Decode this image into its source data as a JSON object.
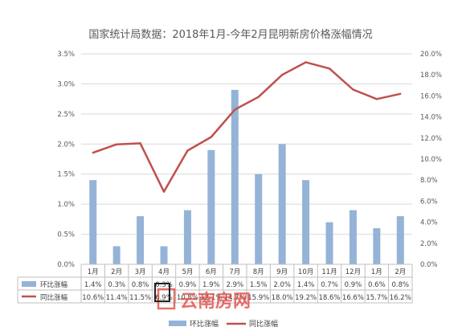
{
  "chart_data": {
    "type": "bar+line",
    "title": "国家统计局数据：2018年1月-今年2月昆明新房价格涨幅情况",
    "categories": [
      "1月",
      "2月",
      "3月",
      "4月",
      "5月",
      "6月",
      "7月",
      "8月",
      "9月",
      "10月",
      "11月",
      "12月",
      "1月",
      "2月"
    ],
    "series": [
      {
        "name": "环比涨幅",
        "kind": "bar",
        "axis": "left",
        "color": "#95B3D7",
        "values": [
          1.4,
          0.3,
          0.8,
          0.3,
          0.9,
          1.9,
          2.9,
          1.5,
          2.0,
          1.4,
          0.7,
          0.9,
          0.6,
          0.8
        ],
        "labels": [
          "1.4%",
          "0.3%",
          "0.8%",
          "0.3%",
          "0.9%",
          "1.9%",
          "2.9%",
          "1.5%",
          "2.0%",
          "1.4%",
          "0.7%",
          "0.9%",
          "0.6%",
          "0.8%"
        ]
      },
      {
        "name": "同比涨幅",
        "kind": "line",
        "axis": "right",
        "color": "#C0504D",
        "values": [
          10.6,
          11.4,
          11.5,
          6.9,
          10.8,
          12.1,
          14.7,
          15.9,
          18.0,
          19.2,
          18.6,
          16.6,
          15.7,
          16.2
        ],
        "labels": [
          "10.6%",
          "11.4%",
          "11.5%",
          "6.9%",
          "10.8%",
          "12.1%",
          "14.7%",
          "15.9%",
          "18.0%",
          "19.2%",
          "18.6%",
          "16.6%",
          "15.7%",
          "16.2%"
        ]
      }
    ],
    "ylim_left": [
      0,
      3.5
    ],
    "yticks_left": [
      "0.0%",
      "0.5%",
      "1.0%",
      "1.5%",
      "2.0%",
      "2.5%",
      "3.0%",
      "3.5%"
    ],
    "ylim_right": [
      0,
      20
    ],
    "yticks_right": [
      "0.0%",
      "2.0%",
      "4.0%",
      "6.0%",
      "8.0%",
      "10.0%",
      "12.0%",
      "14.0%",
      "16.0%",
      "18.0%",
      "20.0%"
    ],
    "grid": true,
    "legend": "bottom",
    "data_table": true
  },
  "watermark": {
    "text": "云南房网"
  }
}
